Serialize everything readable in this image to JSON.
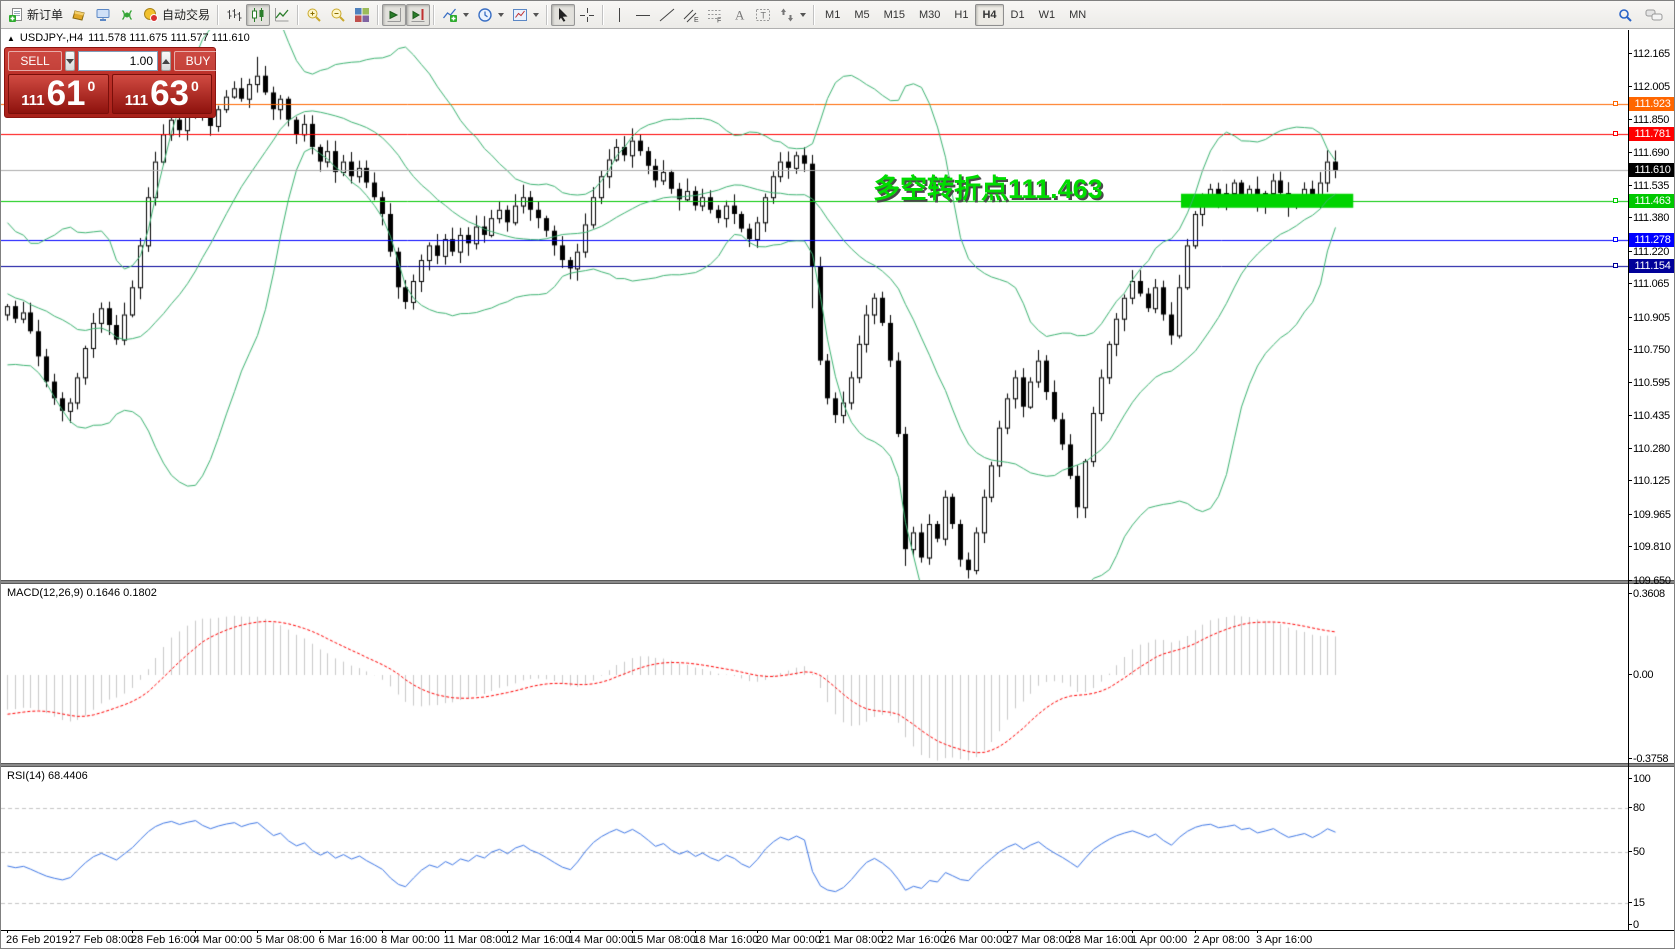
{
  "toolbar": {
    "main_buttons": [
      {
        "name": "new-order-button",
        "icon": "new-order-icon",
        "label": "新订单"
      },
      {
        "name": "styles-button",
        "icon": "styles-icon"
      },
      {
        "name": "terminal-button",
        "icon": "terminal-icon"
      },
      {
        "name": "signals-button",
        "icon": "signals-icon"
      },
      {
        "name": "autotrade-button",
        "icon": "autotrade-icon",
        "label": "自动交易"
      },
      {
        "sep": true
      },
      {
        "name": "bar-chart-button",
        "icon": "bars-icon"
      },
      {
        "name": "candlestick-button",
        "icon": "candles-icon",
        "active": true
      },
      {
        "name": "line-chart-button",
        "icon": "line-icon"
      },
      {
        "sep": true
      },
      {
        "name": "zoom-in-button",
        "icon": "zoom-in-icon"
      },
      {
        "name": "zoom-out-button",
        "icon": "zoom-out-icon"
      },
      {
        "name": "tile-windows-button",
        "icon": "tile-icon"
      },
      {
        "sep": true
      },
      {
        "name": "auto-scroll-button",
        "icon": "auto-scroll-icon",
        "active": true
      },
      {
        "name": "chart-shift-button",
        "icon": "chart-shift-icon",
        "active": true
      },
      {
        "sep": true
      },
      {
        "name": "indicators-button",
        "icon": "indicators-icon",
        "dropdown": true
      },
      {
        "name": "periods-button",
        "icon": "clock-icon",
        "dropdown": true
      },
      {
        "name": "templates-button",
        "icon": "template-icon",
        "dropdown": true
      },
      {
        "sep": true
      },
      {
        "name": "cursor-button",
        "icon": "cursor-icon",
        "active": true
      },
      {
        "name": "crosshair-button",
        "icon": "crosshair-icon"
      },
      {
        "sep": true
      },
      {
        "name": "vertical-line-button",
        "icon": "vline-icon"
      },
      {
        "name": "horizontal-line-button",
        "icon": "hline-icon"
      },
      {
        "name": "trendline-button",
        "icon": "trendline-icon"
      },
      {
        "name": "channel-button",
        "icon": "channel-icon"
      },
      {
        "name": "fibonacci-button",
        "icon": "fibo-icon"
      },
      {
        "name": "text-button",
        "icon": "text-icon"
      },
      {
        "name": "label-button",
        "icon": "label-icon"
      },
      {
        "name": "arrows-button",
        "icon": "arrows-icon",
        "dropdown": true
      },
      {
        "sep": true
      }
    ],
    "timeframes": [
      {
        "label": "M1"
      },
      {
        "label": "M5"
      },
      {
        "label": "M15"
      },
      {
        "label": "M30"
      },
      {
        "label": "H1"
      },
      {
        "label": "H4",
        "active": true
      },
      {
        "label": "D1"
      },
      {
        "label": "W1"
      },
      {
        "label": "MN"
      }
    ]
  },
  "chart": {
    "symbol_header": {
      "symbol": "USDJPY-,H4",
      "ohlc": "111.578 111.675 111.577 111.610"
    },
    "annotation": {
      "text": "多空转折点111.463",
      "color": "#00DC00"
    }
  },
  "trade_panel": {
    "sell_label": "SELL",
    "buy_label": "BUY",
    "volume": "1.00",
    "sell_price": {
      "small": "111",
      "big": "61",
      "sup": "0"
    },
    "buy_price": {
      "small": "111",
      "big": "63",
      "sup": "0"
    }
  },
  "chart_data": {
    "type": "candlestick+indicators",
    "symbol": "USDJPY",
    "timeframe": "H4",
    "main": {
      "current_price": 111.61,
      "current_price_label": "111.610",
      "y_ticks": [
        "112.165",
        "112.005",
        "111.850",
        "111.690",
        "111.535",
        "111.380",
        "111.220",
        "111.065",
        "110.905",
        "110.750",
        "110.595",
        "110.435",
        "110.280",
        "110.125",
        "109.965",
        "109.810",
        "109.650"
      ],
      "levels": [
        {
          "price": 111.923,
          "label": "111.923",
          "color": "#FF6600"
        },
        {
          "price": 111.781,
          "label": "111.781",
          "color": "#FF0000"
        },
        {
          "price": 111.463,
          "label": "111.463",
          "color": "#00C800"
        },
        {
          "price": 111.278,
          "label": "111.278",
          "color": "#0000FF"
        },
        {
          "price": 111.154,
          "label": "111.154",
          "color": "#000099"
        }
      ],
      "band": {
        "price": 111.463,
        "from_bar": 151,
        "to_bar": 171,
        "color": "#00D400"
      },
      "bollinger": {
        "period": 20,
        "deviation": 2,
        "color": "#3CB371"
      },
      "warmup_closes": [
        111.9,
        111.75,
        111.6,
        111.7,
        111.55,
        111.4,
        111.5,
        111.3,
        111.15,
        111.25,
        111.05,
        110.9,
        111.0,
        110.8,
        110.95,
        111.1,
        110.85,
        110.7,
        110.9,
        111.2,
        111.35,
        111.15,
        110.95,
        111.05,
        110.85,
        110.92
      ],
      "closes": [
        110.96,
        110.9,
        110.93,
        110.84,
        110.72,
        110.6,
        110.52,
        110.46,
        110.5,
        110.62,
        110.76,
        110.88,
        110.95,
        110.87,
        110.8,
        110.92,
        111.05,
        111.25,
        111.48,
        111.65,
        111.78,
        111.85,
        111.8,
        111.88,
        111.94,
        111.87,
        111.82,
        111.9,
        111.96,
        112.0,
        111.95,
        112.02,
        112.06,
        111.98,
        111.9,
        111.95,
        111.85,
        111.78,
        111.83,
        111.72,
        111.65,
        111.7,
        111.6,
        111.65,
        111.58,
        111.62,
        111.55,
        111.48,
        111.4,
        111.22,
        111.05,
        110.98,
        111.08,
        111.18,
        111.25,
        111.2,
        111.28,
        111.22,
        111.3,
        111.26,
        111.34,
        111.3,
        111.38,
        111.42,
        111.36,
        111.44,
        111.48,
        111.42,
        111.38,
        111.32,
        111.25,
        111.18,
        111.14,
        111.22,
        111.35,
        111.48,
        111.58,
        111.66,
        111.72,
        111.68,
        111.75,
        111.7,
        111.63,
        111.56,
        111.6,
        111.52,
        111.47,
        111.51,
        111.44,
        111.48,
        111.42,
        111.38,
        111.44,
        111.4,
        111.33,
        111.28,
        111.36,
        111.48,
        111.58,
        111.65,
        111.62,
        111.68,
        111.64,
        111.15,
        110.7,
        110.52,
        110.44,
        110.5,
        110.62,
        110.78,
        110.92,
        111.0,
        110.88,
        110.7,
        110.35,
        109.8,
        109.88,
        109.76,
        109.92,
        109.85,
        110.05,
        109.92,
        109.75,
        109.7,
        109.88,
        110.05,
        110.2,
        110.38,
        110.52,
        110.62,
        110.48,
        110.6,
        110.7,
        110.55,
        110.42,
        110.3,
        110.15,
        110.0,
        110.22,
        110.45,
        110.62,
        110.78,
        110.9,
        111.0,
        111.08,
        111.02,
        110.95,
        111.05,
        110.92,
        110.82,
        111.05,
        111.25,
        111.4,
        111.48,
        111.52,
        111.46,
        111.5,
        111.55,
        111.48,
        111.52,
        111.45,
        111.5,
        111.56,
        111.5,
        111.44,
        111.48,
        111.52,
        111.47,
        111.55,
        111.65,
        111.61
      ],
      "wick_overrides": {
        "7": {
          "l": 110.41
        },
        "32": {
          "h": 112.15
        },
        "103": {
          "l": 110.95
        },
        "115": {
          "l": 109.72
        },
        "123": {
          "l": 109.66
        }
      }
    },
    "macd": {
      "label_full": "MACD(12,26,9) 0.1646 0.1802",
      "params": "12,26,9",
      "value": "0.1646",
      "signal_value": "0.1802",
      "axis": [
        "0.3608",
        "0.00",
        "-0.3758"
      ],
      "histogram_color": "#C9C9C9",
      "signal_color": "#FF0000"
    },
    "rsi": {
      "label_full": "RSI(14) 68.4406",
      "period": 14,
      "value": "68.4406",
      "axis": [
        "100",
        "80",
        "50",
        "15",
        "0"
      ],
      "level_lines": [
        80,
        50,
        15
      ],
      "line_color": "#3E77E6"
    },
    "x_labels": [
      "26 Feb 2019",
      "27 Feb 08:00",
      "28 Feb 16:00",
      "4 Mar 00:00",
      "5 Mar 08:00",
      "6 Mar 16:00",
      "8 Mar 00:00",
      "11 Mar 08:00",
      "12 Mar 16:00",
      "14 Mar 00:00",
      "15 Mar 08:00",
      "18 Mar 16:00",
      "20 Mar 00:00",
      "21 Mar 08:00",
      "22 Mar 16:00",
      "26 Mar 00:00",
      "27 Mar 08:00",
      "28 Mar 16:00",
      "1 Apr 00:00",
      "2 Apr 08:00",
      "3 Apr 16:00"
    ],
    "price_tags": [
      {
        "label": "111.923",
        "bg": "#FF6600",
        "price": 111.923
      },
      {
        "label": "111.781",
        "bg": "#FF0000",
        "price": 111.781
      },
      {
        "label": "111.610",
        "bg": "#000000",
        "price": 111.61
      },
      {
        "label": "111.463",
        "bg": "#00C800",
        "price": 111.463
      },
      {
        "label": "111.278",
        "bg": "#0000FF",
        "price": 111.278
      },
      {
        "label": "111.154",
        "bg": "#000099",
        "price": 111.154
      }
    ]
  }
}
